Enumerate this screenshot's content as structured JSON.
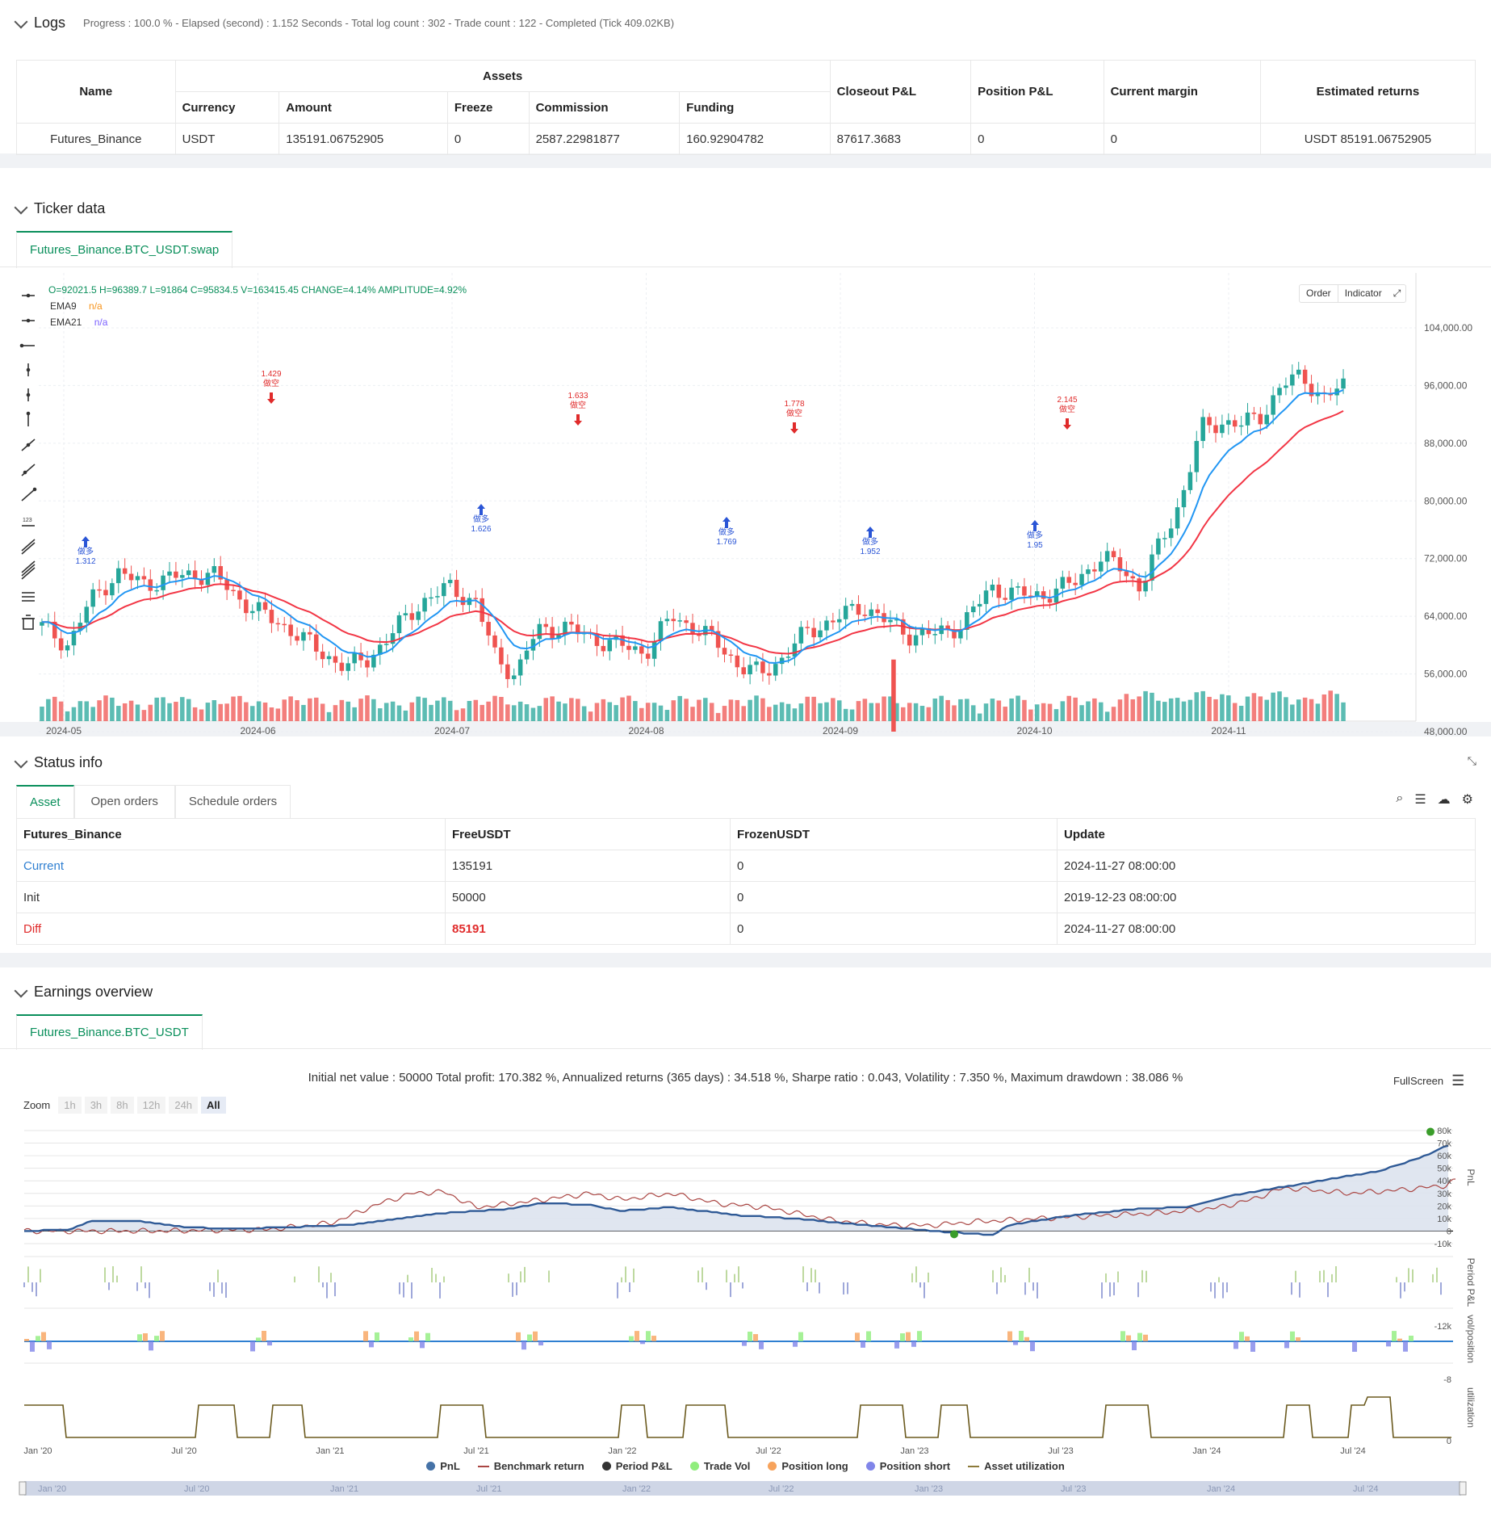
{
  "logs": {
    "title": "Logs",
    "meta": "Progress : 100.0 % - Elapsed (second) : 1.152  Seconds - Total log count : 302 - Trade count : 122 - Completed (Tick 409.02KB)",
    "table": {
      "h_name": "Name",
      "h_assets": "Assets",
      "h_closeout": "Closeout P&L",
      "h_position": "Position P&L",
      "h_margin": "Current margin",
      "h_est": "Estimated returns",
      "h_currency": "Currency",
      "h_amount": "Amount",
      "h_freeze": "Freeze",
      "h_commission": "Commission",
      "h_funding": "Funding",
      "row": {
        "name": "Futures_Binance",
        "currency": "USDT",
        "amount": "135191.06752905",
        "freeze": "0",
        "commission": "2587.22981877",
        "funding": "160.92904782",
        "closeout": "87617.3683",
        "position": "0",
        "margin": "0",
        "est": "USDT 85191.06752905"
      }
    }
  },
  "ticker": {
    "title": "Ticker data",
    "tab": "Futures_Binance.BTC_USDT.swap",
    "ohlc": "O=92021.5 H=96389.7 L=91864 C=95834.5 V=163415.45 CHANGE=4.14% AMPLITUDE=4.92%",
    "ema9": "EMA9",
    "ema9_val": "n/a",
    "ema21": "EMA21",
    "ema21_val": "n/a",
    "btn_order": "Order",
    "btn_indicator": "Indicator",
    "y_ticks": [
      "104,000.00",
      "96,000.00",
      "88,000.00",
      "80,000.00",
      "72,000.00",
      "64,000.00",
      "56,000.00",
      "48,000.00"
    ],
    "x_ticks": [
      "2024-05",
      "2024-06",
      "2024-07",
      "2024-08",
      "2024-09",
      "2024-10",
      "2024-11"
    ],
    "signals": [
      {
        "type": "long",
        "label": "做多",
        "value": "1.312"
      },
      {
        "type": "short",
        "label": "做空",
        "value": "1.429"
      },
      {
        "type": "long",
        "label": "做多",
        "value": "1.626"
      },
      {
        "type": "short",
        "label": "做空",
        "value": "1.633"
      },
      {
        "type": "long",
        "label": "做多",
        "value": "1.769"
      },
      {
        "type": "short",
        "label": "做空",
        "value": "1.778"
      },
      {
        "type": "long",
        "label": "做多",
        "value": "1.952"
      },
      {
        "type": "short",
        "label": "做空",
        "value": "2.145"
      },
      {
        "type": "long",
        "label": "做多",
        "value": "1.95"
      }
    ],
    "colors": {
      "up": "#26a69a",
      "down": "#ef5350",
      "ema9": "#2196f3",
      "ema21": "#f23645"
    }
  },
  "status": {
    "title": "Status info",
    "tabs": [
      "Asset",
      "Open orders",
      "Schedule orders"
    ],
    "headers": [
      "Futures_Binance",
      "FreeUSDT",
      "FrozenUSDT",
      "Update"
    ],
    "rows": [
      [
        "Current",
        "135191",
        "0",
        "2024-11-27 08:00:00"
      ],
      [
        "Init",
        "50000",
        "0",
        "2019-12-23 08:00:00"
      ],
      [
        "Diff",
        "85191",
        "0",
        "2024-11-27 08:00:00"
      ]
    ]
  },
  "earnings": {
    "title": "Earnings overview",
    "tab": "Futures_Binance.BTC_USDT",
    "summary": "Initial net value : 50000 Total profit: 170.382 %, Annualized returns (365 days) : 34.518 %, Sharpe ratio : 0.043, Volatility : 7.350 %, Maximum drawdown : 38.086 %",
    "fullscreen": "FullScreen",
    "zoom_label": "Zoom",
    "zoom_options": [
      "1h",
      "3h",
      "8h",
      "12h",
      "24h",
      "All"
    ],
    "pnl_ticks": [
      "80k",
      "70k",
      "60k",
      "50k",
      "40k",
      "30k",
      "20k",
      "10k",
      "0",
      "-10k"
    ],
    "period_tick": "-12k",
    "vol_tick": "-8",
    "util_tick": "0",
    "axis_titles": [
      "PnL",
      "Period P&L",
      "vol/position",
      "utilization"
    ],
    "x_ticks": [
      "Jan '20",
      "Jul '20",
      "Jan '21",
      "Jul '21",
      "Jan '22",
      "Jul '22",
      "Jan '23",
      "Jul '23",
      "Jan '24",
      "Jul '24"
    ],
    "legend": [
      {
        "name": "PnL",
        "color": "#4572a7"
      },
      {
        "name": "Benchmark return",
        "color": "#aa4643"
      },
      {
        "name": "Period P&L",
        "color": "#333333"
      },
      {
        "name": "Trade Vol",
        "color": "#90ed7d"
      },
      {
        "name": "Position long",
        "color": "#f7a35c"
      },
      {
        "name": "Position short",
        "color": "#8085e9"
      },
      {
        "name": "Asset utilization",
        "color": "#8d7b3a"
      }
    ]
  }
}
